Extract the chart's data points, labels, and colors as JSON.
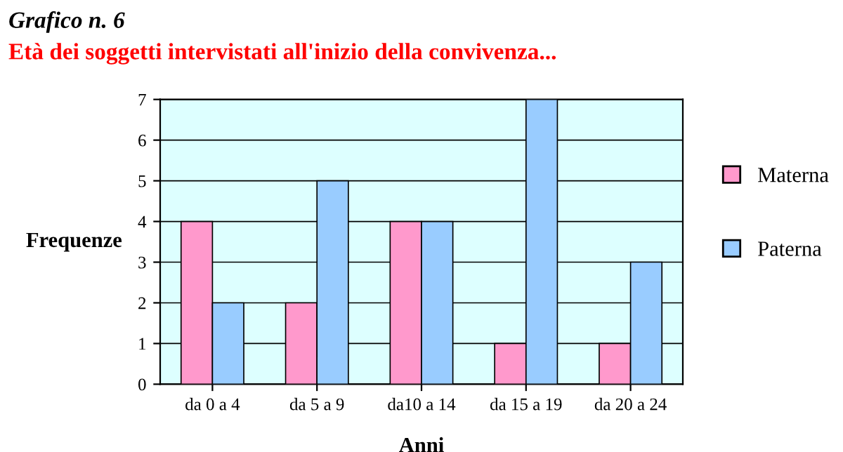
{
  "chart_data": {
    "type": "bar",
    "title": "Grafico n. 6",
    "subtitle": "Età dei soggetti intervistati all'inizio della convivenza...",
    "xlabel": "Anni",
    "ylabel": "Frequenze",
    "categories": [
      "da 0 a 4",
      "da 5 a 9",
      "da10 a 14",
      "da 15 a 19",
      "da 20 a 24"
    ],
    "series": [
      {
        "name": "Materna",
        "color": "#ff99cc",
        "values": [
          4,
          2,
          4,
          1,
          1
        ]
      },
      {
        "name": "Paterna",
        "color": "#99ccff",
        "values": [
          2,
          5,
          4,
          7,
          3
        ]
      }
    ],
    "ylim": [
      0,
      7
    ],
    "yticks": [
      0,
      1,
      2,
      3,
      4,
      5,
      6,
      7
    ],
    "grid": "y",
    "legend": "right"
  }
}
